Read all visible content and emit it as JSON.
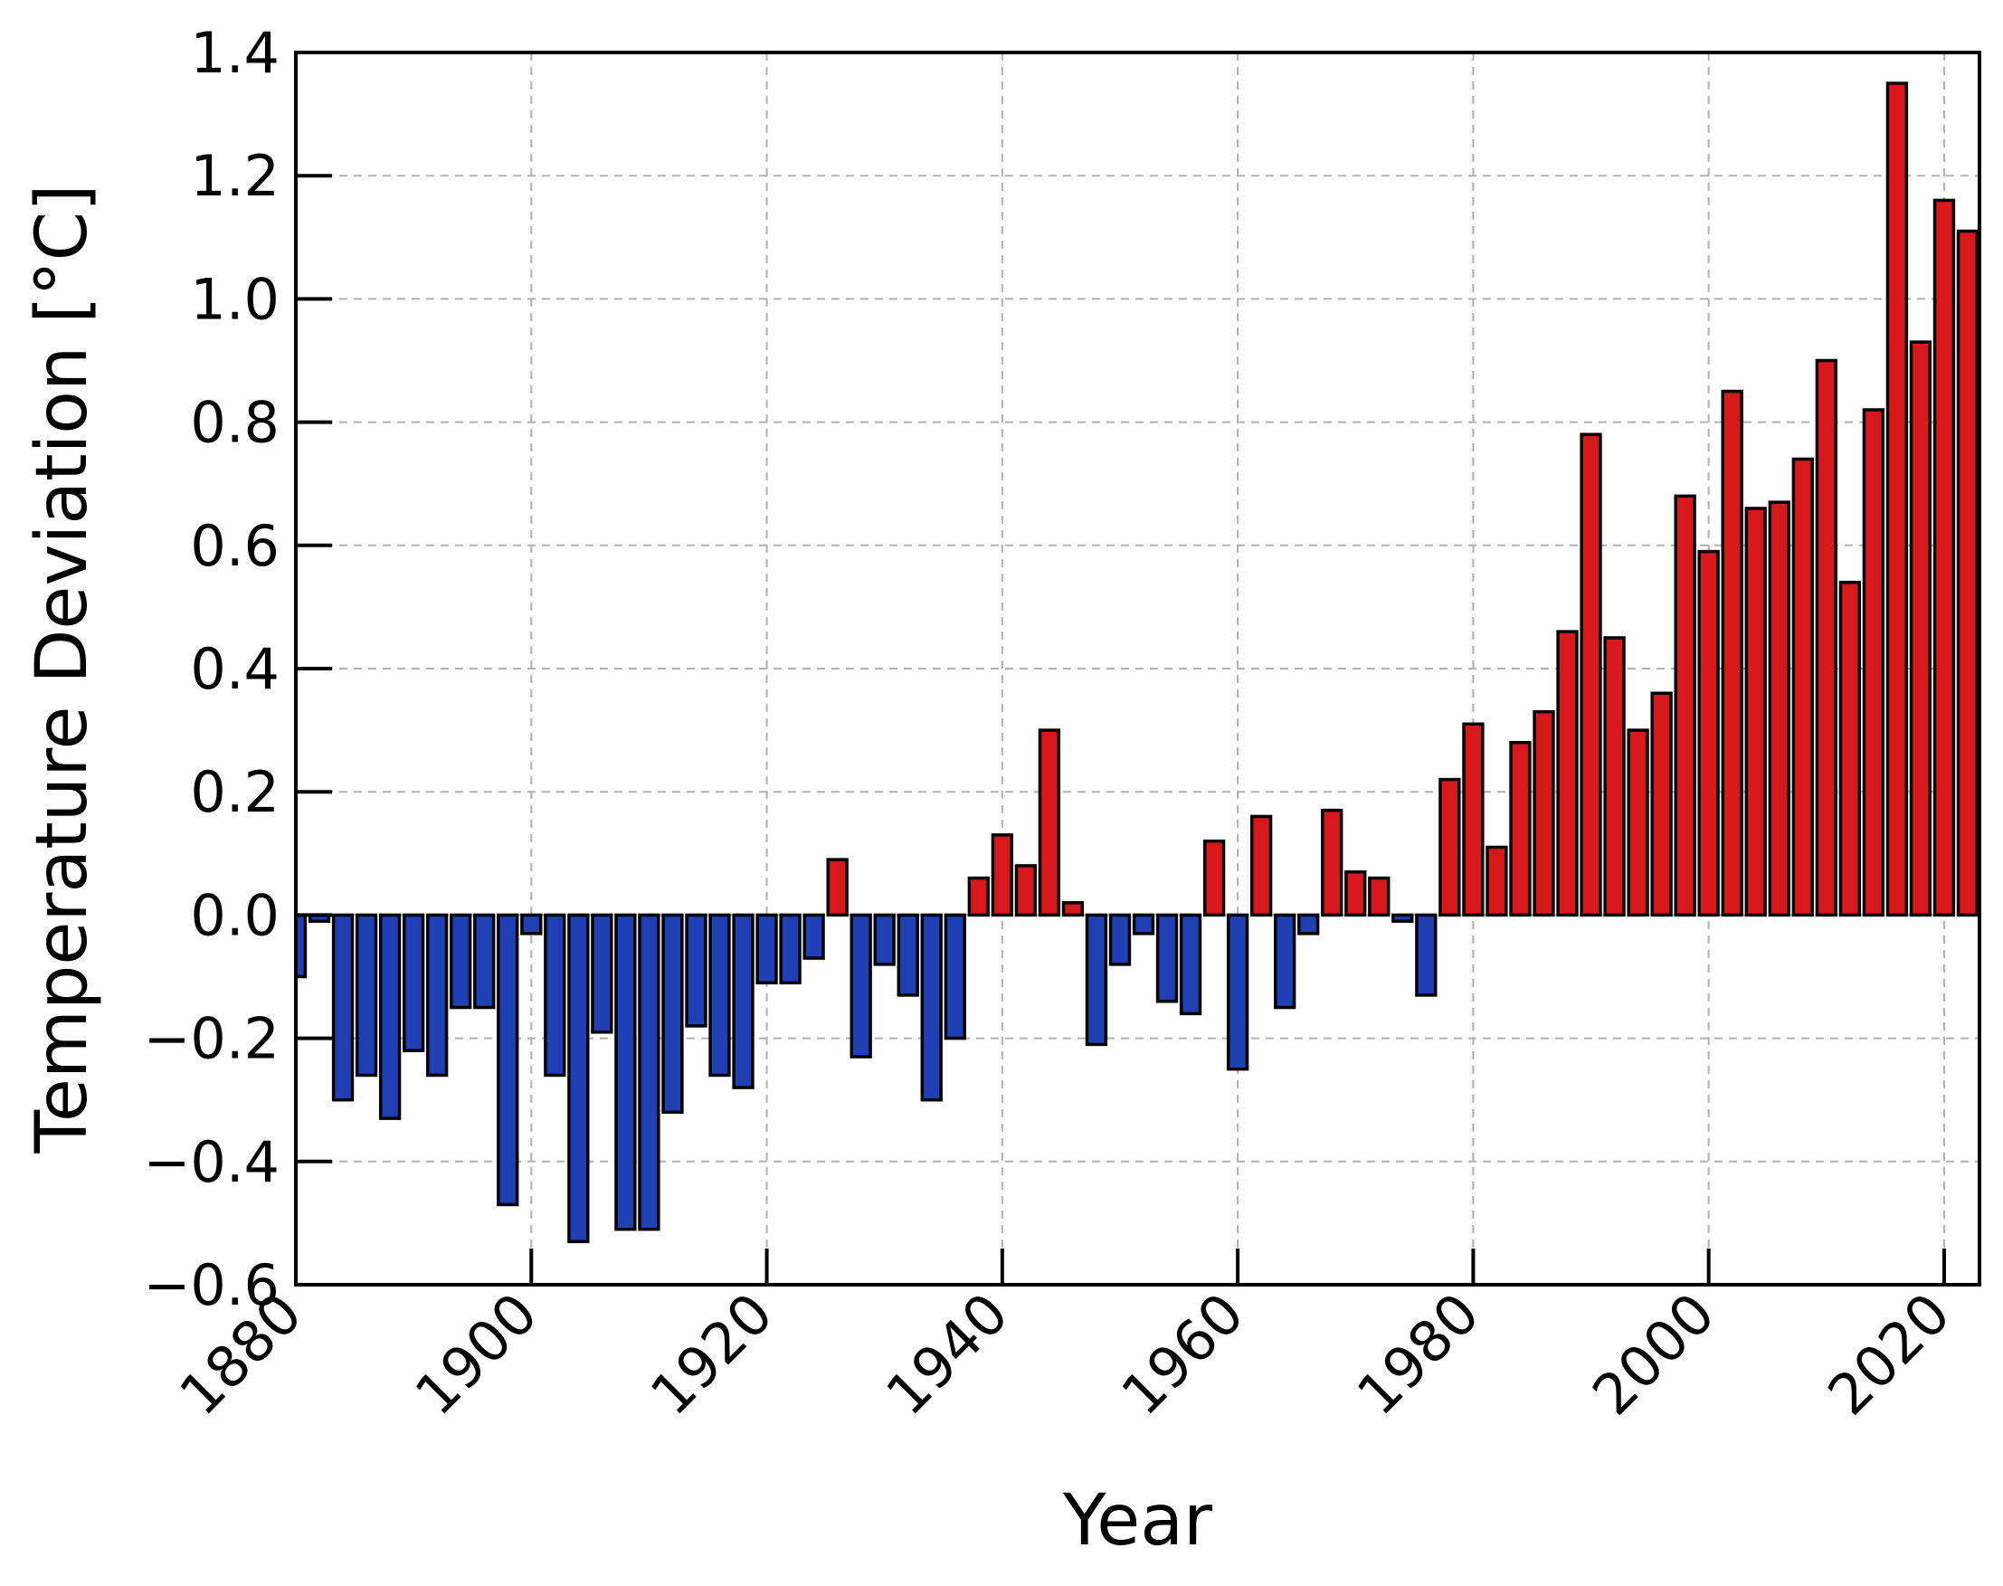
{
  "chart_data": {
    "type": "bar",
    "title": "",
    "xlabel": "Year",
    "ylabel": "Temperature Deviation [°C]",
    "xlim": [
      1880,
      2023
    ],
    "ylim": [
      -0.6,
      1.4
    ],
    "x_ticks": [
      1880,
      1900,
      1920,
      1940,
      1960,
      1980,
      2000,
      2020
    ],
    "y_ticks": [
      -0.6,
      -0.4,
      -0.2,
      0.0,
      0.2,
      0.4,
      0.6,
      0.8,
      1.0,
      1.2,
      1.4
    ],
    "y_tick_labels": [
      "−0.6",
      "−0.4",
      "−0.2",
      "0.0",
      "0.2",
      "0.4",
      "0.6",
      "0.8",
      "1.0",
      "1.2",
      "1.4"
    ],
    "grid": true,
    "colors": {
      "positive": "#d7191c",
      "negative": "#1f3fb4",
      "edge": "#000000",
      "grid": "#b0b0b0"
    },
    "x": [
      1880,
      1882,
      1884,
      1886,
      1888,
      1890,
      1892,
      1894,
      1896,
      1898,
      1900,
      1902,
      1904,
      1906,
      1908,
      1910,
      1912,
      1914,
      1916,
      1918,
      1920,
      1922,
      1924,
      1926,
      1928,
      1930,
      1932,
      1934,
      1936,
      1938,
      1940,
      1942,
      1944,
      1946,
      1948,
      1950,
      1952,
      1954,
      1956,
      1958,
      1960,
      1962,
      1964,
      1966,
      1968,
      1970,
      1972,
      1974,
      1976,
      1978,
      1980,
      1982,
      1984,
      1986,
      1988,
      1990,
      1992,
      1994,
      1996,
      1998,
      2000,
      2002,
      2004,
      2006,
      2008,
      2010,
      2012,
      2014,
      2016,
      2018,
      2020,
      2022
    ],
    "values": [
      -0.1,
      -0.01,
      -0.3,
      -0.26,
      -0.33,
      -0.22,
      -0.26,
      -0.15,
      -0.15,
      -0.47,
      -0.03,
      -0.26,
      -0.53,
      -0.19,
      -0.51,
      -0.51,
      -0.32,
      -0.18,
      -0.26,
      -0.28,
      -0.11,
      -0.11,
      -0.07,
      0.09,
      -0.23,
      -0.08,
      -0.13,
      -0.3,
      -0.2,
      0.06,
      0.13,
      0.08,
      0.3,
      0.02,
      -0.21,
      -0.08,
      -0.03,
      -0.14,
      -0.16,
      0.12,
      -0.25,
      0.16,
      -0.15,
      -0.03,
      0.17,
      0.07,
      0.06,
      -0.01,
      -0.13,
      0.22,
      0.31,
      0.11,
      0.28,
      0.33,
      0.46,
      0.78,
      0.45,
      0.3,
      0.36,
      0.68,
      0.59,
      0.85,
      0.66,
      0.67,
      0.74,
      0.9,
      0.54,
      0.82,
      1.35,
      0.93,
      1.16,
      1.11
    ]
  }
}
